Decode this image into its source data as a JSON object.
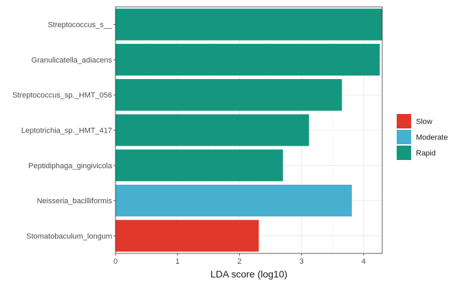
{
  "chart_data": {
    "type": "bar",
    "orientation": "horizontal",
    "title": "",
    "xlabel": "LDA score (log10)",
    "ylabel": "",
    "xlim": [
      0,
      4.3
    ],
    "x_ticks": [
      "0",
      "1",
      "2",
      "3",
      "4"
    ],
    "grid": true,
    "legend_position": "right",
    "legend": [
      {
        "label": "Slow",
        "color": "#E0382B"
      },
      {
        "label": "Moderate",
        "color": "#47B0CF"
      },
      {
        "label": "Rapid",
        "color": "#14977E"
      }
    ],
    "bars": [
      {
        "label": "Streptococcus_s__",
        "value": 4.3,
        "group": "Rapid"
      },
      {
        "label": "Granulicatella_adiacens",
        "value": 4.26,
        "group": "Rapid"
      },
      {
        "label": "Streptococcus_sp._HMT_056",
        "value": 3.65,
        "group": "Rapid"
      },
      {
        "label": "Leptotrichia_sp._HMT_417",
        "value": 3.12,
        "group": "Rapid"
      },
      {
        "label": "Peptidiphaga_gingivicola",
        "value": 2.7,
        "group": "Rapid"
      },
      {
        "label": "Neisseria_bacilliformis",
        "value": 3.81,
        "group": "Moderate"
      },
      {
        "label": "Stomatobaculum_longum",
        "value": 2.31,
        "group": "Slow"
      }
    ]
  }
}
